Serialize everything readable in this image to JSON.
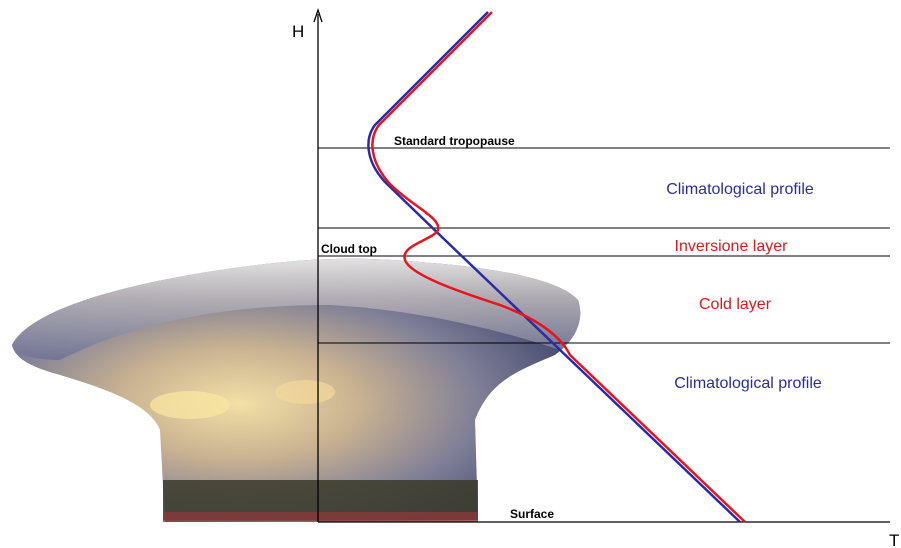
{
  "axes": {
    "y_label": "H",
    "x_label": "T"
  },
  "levels": {
    "tropopause": "Standard tropopause",
    "cloud_top": "Cloud top",
    "surface": "Surface"
  },
  "layers": [
    "Climatological profile",
    "Inversione layer",
    "Cold layer",
    "Climatological profile"
  ]
}
